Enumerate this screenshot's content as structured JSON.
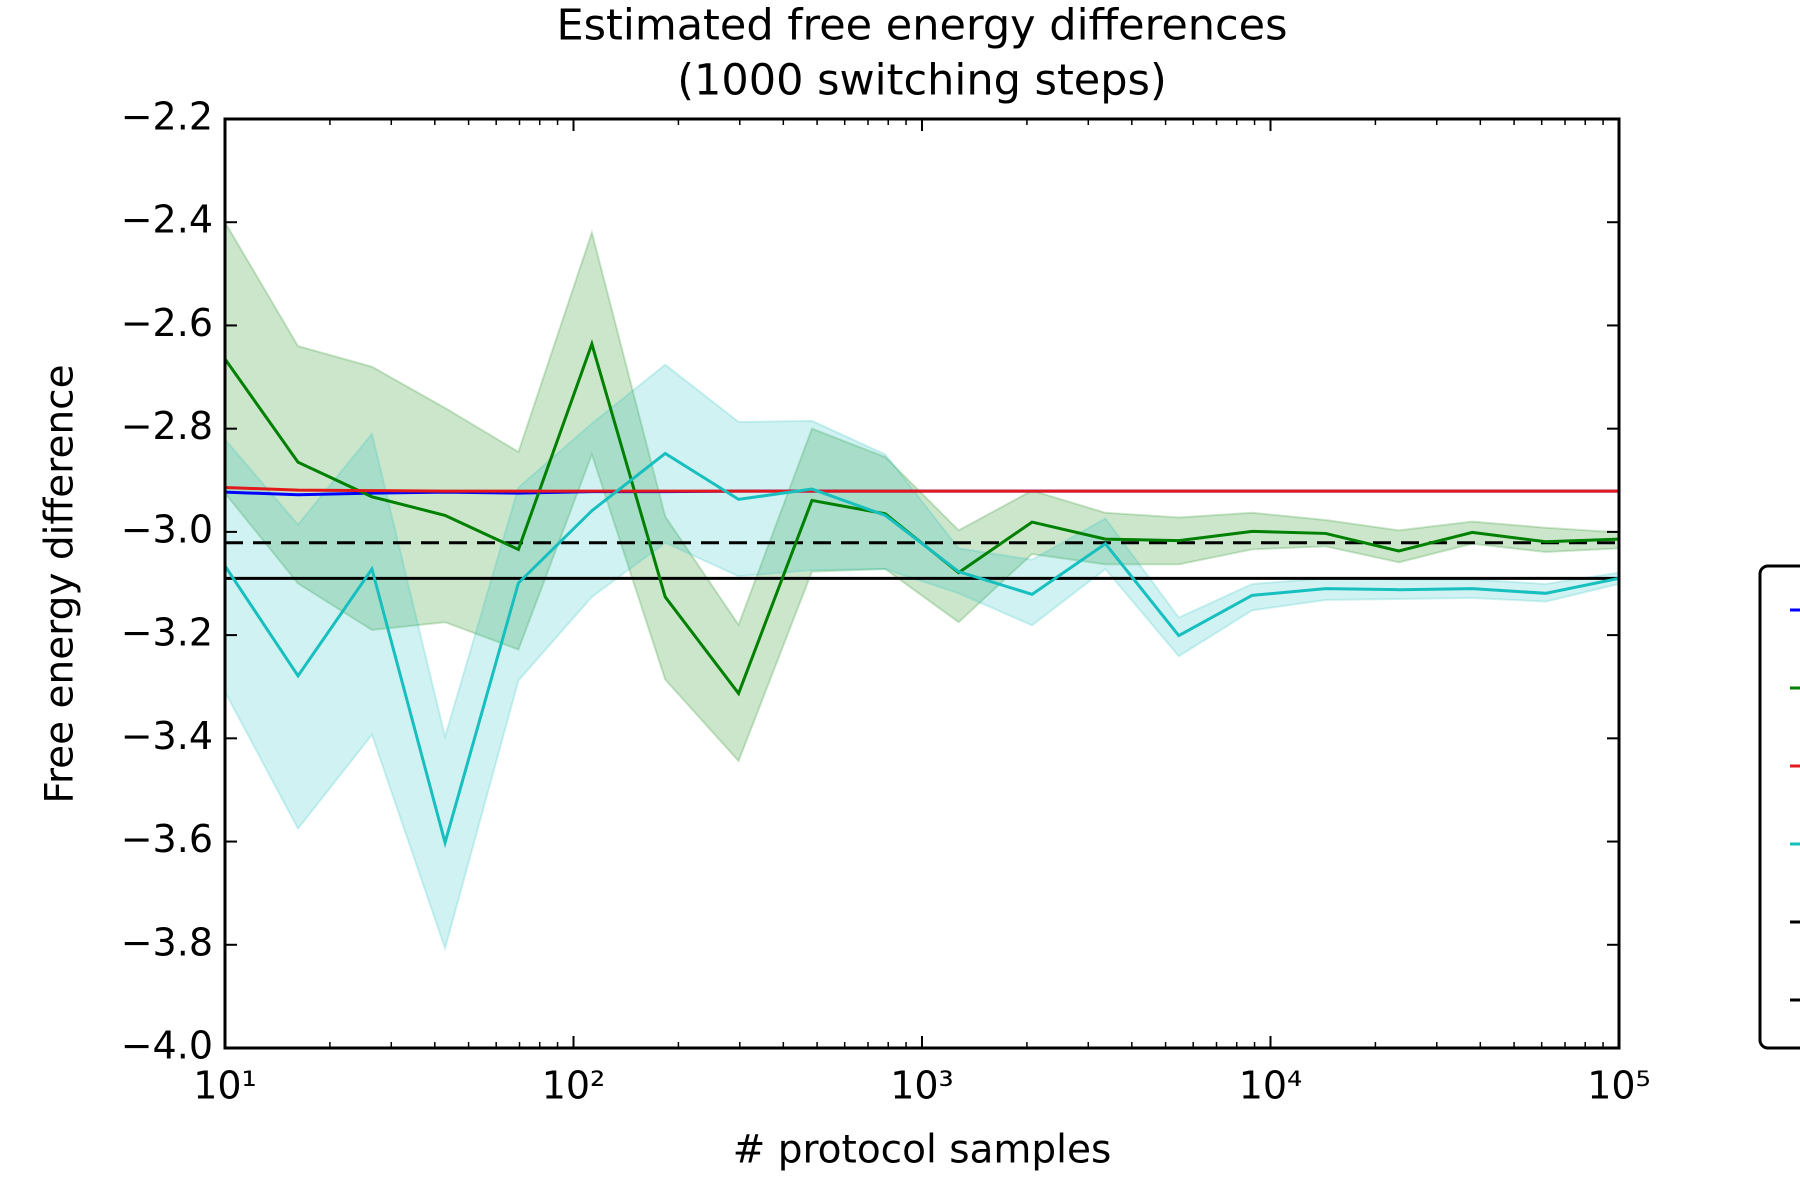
{
  "chart_data": {
    "type": "line",
    "title": "Estimated free energy differences",
    "subtitle": "(1000 switching steps)",
    "xlabel": "# protocol samples",
    "ylabel": "Free energy difference",
    "xscale": "log",
    "xlim": [
      10,
      100000
    ],
    "ylim": [
      -4.0,
      -2.2
    ],
    "xticks": [
      {
        "value": 10,
        "label": "10¹"
      },
      {
        "value": 100,
        "label": "10²"
      },
      {
        "value": 1000,
        "label": "10³"
      },
      {
        "value": 10000,
        "label": "10⁴"
      },
      {
        "value": 100000,
        "label": "10⁵"
      }
    ],
    "xminorticks": [
      20,
      30,
      40,
      50,
      60,
      70,
      80,
      90,
      200,
      300,
      400,
      500,
      600,
      700,
      800,
      900,
      2000,
      3000,
      4000,
      5000,
      6000,
      7000,
      8000,
      9000,
      20000,
      30000,
      40000,
      50000,
      60000,
      70000,
      80000,
      90000
    ],
    "yticks": [
      {
        "value": -2.2,
        "label": "−2.2"
      },
      {
        "value": -2.4,
        "label": "−2.4"
      },
      {
        "value": -2.6,
        "label": "−2.6"
      },
      {
        "value": -2.8,
        "label": "−2.8"
      },
      {
        "value": -3.0,
        "label": "−3.0"
      },
      {
        "value": -3.2,
        "label": "−3.2"
      },
      {
        "value": -3.4,
        "label": "−3.4"
      },
      {
        "value": -3.6,
        "label": "−3.6"
      },
      {
        "value": -3.8,
        "label": "−3.8"
      },
      {
        "value": -4.0,
        "label": "−4.0"
      }
    ],
    "legend": "outside right",
    "band_alpha": 0.2,
    "x": [
      10,
      16.2,
      26.4,
      42.8,
      69.5,
      112.9,
      183.3,
      297.6,
      483.3,
      784.8,
      1274,
      2069,
      3360,
      5456,
      8859,
      14384,
      23357,
      37927,
      61585,
      100000
    ],
    "series": [
      {
        "color": "#0000ff",
        "values": [
          -2.923,
          -2.928,
          -2.925,
          -2.923,
          -2.925,
          -2.922,
          -2.922,
          -2.921,
          -2.921,
          -2.921,
          -2.921,
          -2.921,
          -2.921,
          -2.921,
          -2.921,
          -2.921,
          -2.921,
          -2.921,
          -2.921,
          -2.921
        ]
      },
      {
        "color": "#008000",
        "values": [
          -2.665,
          -2.865,
          -2.932,
          -2.968,
          -3.034,
          -2.636,
          -3.126,
          -3.313,
          -2.939,
          -2.965,
          -3.079,
          -2.981,
          -3.014,
          -3.017,
          -2.999,
          -3.003,
          -3.037,
          -3.001,
          -3.019,
          -3.014
        ],
        "upper": [
          -2.4,
          -2.64,
          -2.68,
          -2.76,
          -2.845,
          -2.42,
          -2.97,
          -3.18,
          -2.8,
          -2.855,
          -2.997,
          -2.92,
          -2.963,
          -2.972,
          -2.963,
          -2.977,
          -2.997,
          -2.98,
          -2.992,
          -3.001
        ],
        "lower": [
          -2.925,
          -3.1,
          -3.19,
          -3.175,
          -3.228,
          -2.85,
          -3.286,
          -3.444,
          -3.077,
          -3.072,
          -3.175,
          -3.043,
          -3.063,
          -3.063,
          -3.034,
          -3.028,
          -3.059,
          -3.023,
          -3.039,
          -3.032
        ]
      },
      {
        "color": "#e31a1c",
        "values": [
          -2.914,
          -2.919,
          -2.92,
          -2.921,
          -2.921,
          -2.921,
          -2.921,
          -2.921,
          -2.921,
          -2.921,
          -2.921,
          -2.921,
          -2.921,
          -2.921,
          -2.921,
          -2.921,
          -2.921,
          -2.921,
          -2.921,
          -2.921
        ]
      },
      {
        "color": "#17bfbf",
        "values": [
          -3.066,
          -3.279,
          -3.072,
          -3.602,
          -3.099,
          -2.959,
          -2.848,
          -2.937,
          -2.917,
          -2.968,
          -3.077,
          -3.121,
          -3.023,
          -3.201,
          -3.123,
          -3.11,
          -3.112,
          -3.11,
          -3.119,
          -3.09
        ],
        "upper": [
          -2.821,
          -2.986,
          -2.81,
          -3.397,
          -2.914,
          -2.79,
          -2.676,
          -2.787,
          -2.785,
          -2.85,
          -3.032,
          -3.054,
          -2.974,
          -3.166,
          -3.101,
          -3.09,
          -3.092,
          -3.092,
          -3.101,
          -3.079
        ],
        "lower": [
          -3.31,
          -3.575,
          -3.393,
          -3.807,
          -3.288,
          -3.126,
          -3.021,
          -3.086,
          -3.074,
          -3.072,
          -3.119,
          -3.181,
          -3.072,
          -3.241,
          -3.152,
          -3.132,
          -3.13,
          -3.128,
          -3.135,
          -3.101
        ]
      }
    ],
    "hlines": [
      {
        "value": -3.09,
        "color": "#000000",
        "style": "solid"
      },
      {
        "value": -3.021,
        "color": "#000000",
        "style": "dashed"
      }
    ]
  }
}
